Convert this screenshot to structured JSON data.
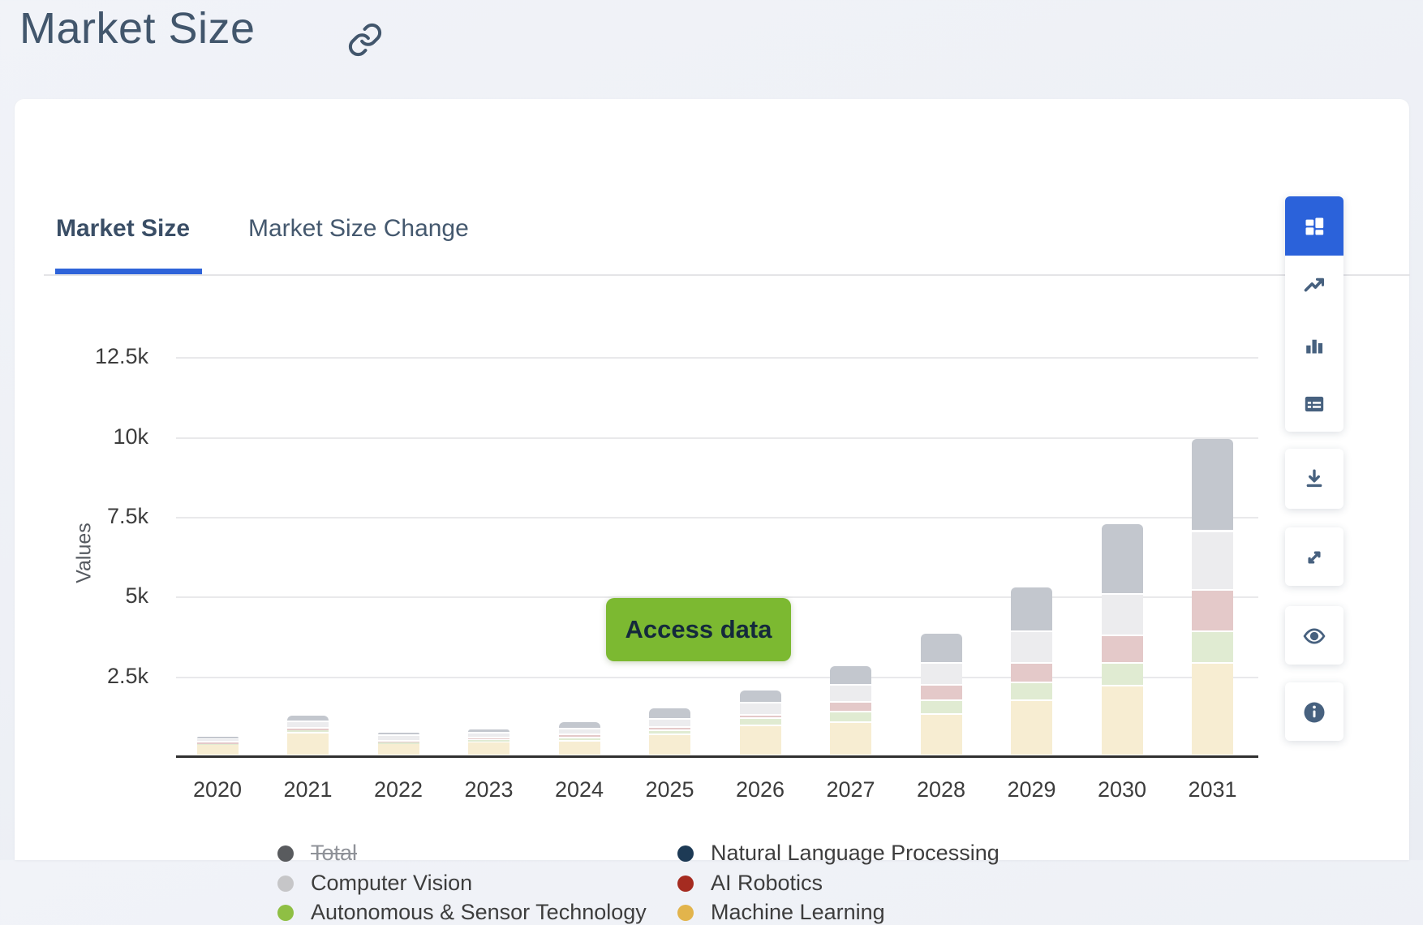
{
  "page": {
    "title": "Market Size"
  },
  "tabs": [
    {
      "label": "Market Size",
      "active": true
    },
    {
      "label": "Market Size Change",
      "active": false
    }
  ],
  "chart_overlay": {
    "access_button_label": "Access data"
  },
  "chart_data": {
    "type": "bar",
    "stacked": true,
    "title": "Market Size",
    "xlabel": "",
    "ylabel": "Values",
    "unit": "thousands (k)",
    "categories": [
      "2020",
      "2021",
      "2022",
      "2023",
      "2024",
      "2025",
      "2026",
      "2027",
      "2028",
      "2029",
      "2030",
      "2031"
    ],
    "y_ticks": [
      {
        "value": 2.5,
        "label": "2.5k"
      },
      {
        "value": 5,
        "label": "5k"
      },
      {
        "value": 7.5,
        "label": "7.5k"
      },
      {
        "value": 10,
        "label": "10k"
      },
      {
        "value": 12.5,
        "label": "12.5k"
      }
    ],
    "ylim": [
      0,
      13.5
    ],
    "grid": true,
    "legend_position": "bottom",
    "series": [
      {
        "name": "Machine Learning",
        "legend_color": "#e2b44c",
        "bar_color": "#f7edd2",
        "values": [
          0.36,
          0.7,
          0.37,
          0.42,
          0.46,
          0.65,
          0.93,
          1.04,
          1.3,
          1.74,
          2.18,
          2.9
        ]
      },
      {
        "name": "Autonomous & Sensor Technology",
        "legend_color": "#8fbf44",
        "bar_color": "#e0ebd2",
        "values": [
          0.04,
          0.12,
          0.06,
          0.08,
          0.11,
          0.15,
          0.24,
          0.33,
          0.44,
          0.55,
          0.72,
          1.0
        ]
      },
      {
        "name": "AI Robotics",
        "legend_color": "#a52b20",
        "bar_color": "#e4c9c9",
        "values": [
          0.03,
          0.04,
          0.04,
          0.07,
          0.08,
          0.1,
          0.1,
          0.3,
          0.47,
          0.61,
          0.87,
          1.28
        ]
      },
      {
        "name": "Computer Vision",
        "legend_color": "#c6c6c8",
        "bar_color": "#ececee",
        "values": [
          0.1,
          0.22,
          0.16,
          0.13,
          0.19,
          0.25,
          0.38,
          0.53,
          0.7,
          0.99,
          1.3,
          1.85
        ]
      },
      {
        "name": "Natural Language Processing",
        "legend_color": "#1d3a55",
        "bar_color": "#c3c7ce",
        "values": [
          0.08,
          0.2,
          0.11,
          0.15,
          0.24,
          0.35,
          0.42,
          0.62,
          0.94,
          1.41,
          2.2,
          2.92
        ]
      }
    ],
    "hidden_series": [
      {
        "name": "Total",
        "legend_color": "#595b5e",
        "disabled": true,
        "values": [
          0.61,
          1.28,
          0.74,
          0.85,
          1.08,
          1.5,
          2.07,
          2.82,
          3.85,
          5.3,
          7.27,
          9.95
        ]
      }
    ]
  },
  "legend": {
    "columns": [
      [
        {
          "label": "Total",
          "color": "#595b5e",
          "disabled": true
        },
        {
          "label": "Computer Vision",
          "color": "#c6c6c8",
          "disabled": false
        },
        {
          "label": "Autonomous & Sensor Technology",
          "color": "#8fbf44",
          "disabled": false
        }
      ],
      [
        {
          "label": "Natural Language Processing",
          "color": "#1d3a55",
          "disabled": false
        },
        {
          "label": "AI Robotics",
          "color": "#a52b20",
          "disabled": false
        },
        {
          "label": "Machine Learning",
          "color": "#e2b44c",
          "disabled": false
        }
      ]
    ]
  },
  "toolbar": {
    "chart_type_buttons": [
      {
        "icon": "stacked-column-chart-icon",
        "active": true
      },
      {
        "icon": "line-chart-icon",
        "active": false
      },
      {
        "icon": "column-chart-icon",
        "active": false
      },
      {
        "icon": "table-icon",
        "active": false
      }
    ],
    "action_buttons": [
      {
        "icon": "download-icon"
      },
      {
        "icon": "fullscreen-icon"
      },
      {
        "icon": "eye-icon"
      },
      {
        "icon": "info-icon"
      }
    ]
  },
  "colors": {
    "accent_blue": "#2b62da",
    "access_green": "#7cb931",
    "icon_slate": "#47617f",
    "axis_line": "#2f2f2f",
    "gridline": "#e9e9eb"
  }
}
